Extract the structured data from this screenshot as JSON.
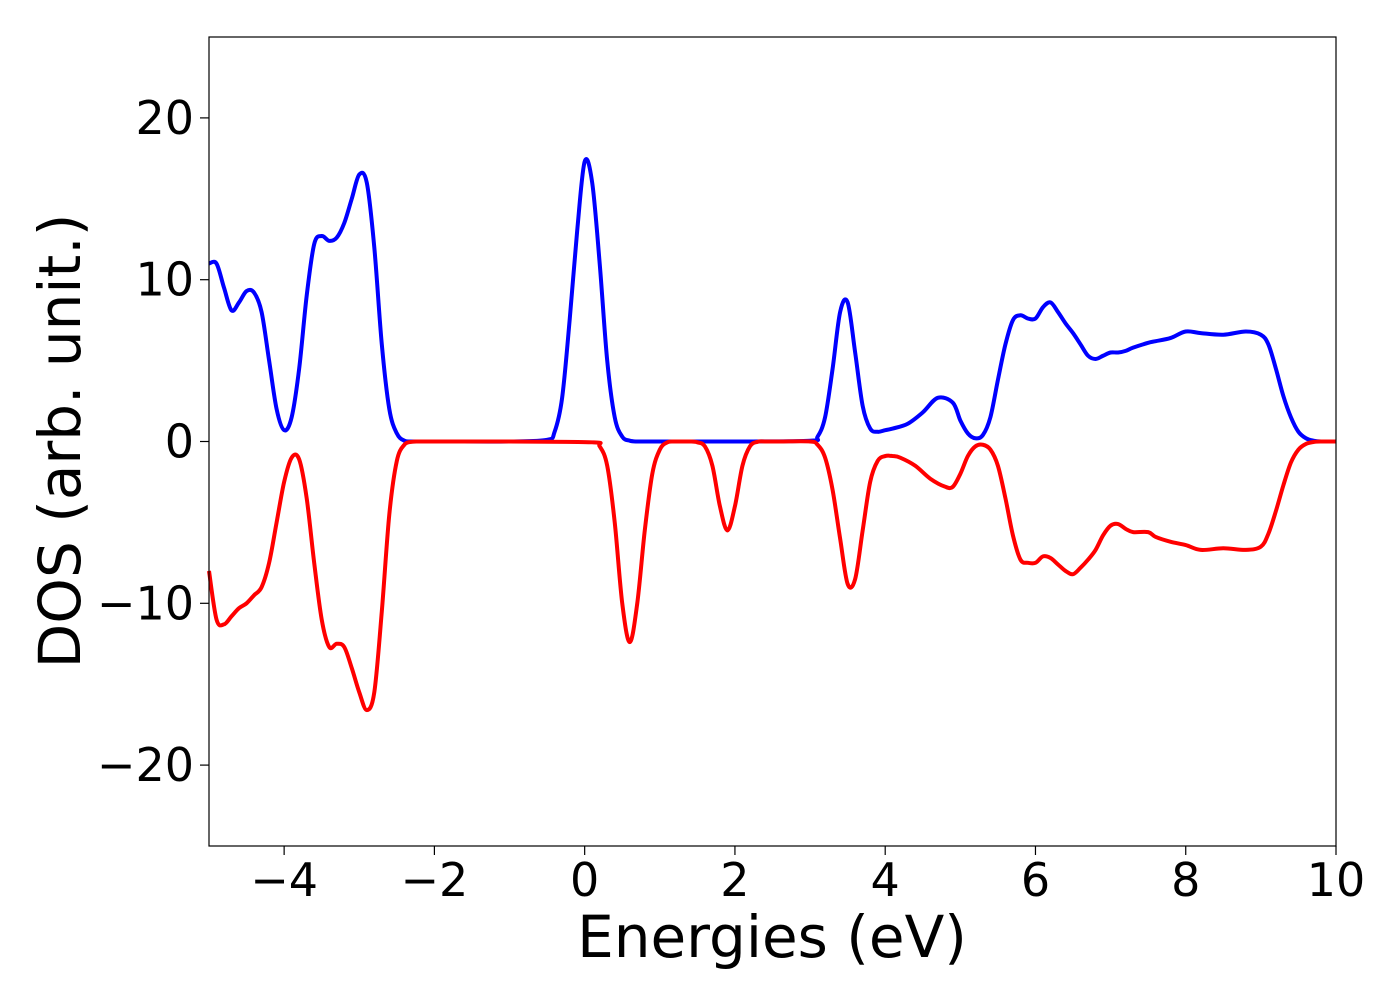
{
  "chart_data": {
    "type": "line",
    "title": "",
    "xlabel": "Energies (eV)",
    "ylabel": "DOS (arb. unit.)",
    "xlim": [
      -5,
      10
    ],
    "ylim": [
      -25,
      25
    ],
    "xticks": [
      -4,
      -2,
      0,
      2,
      4,
      6,
      8,
      10
    ],
    "xtick_labels": [
      "−4",
      "−2",
      "0",
      "2",
      "4",
      "6",
      "8",
      "10"
    ],
    "yticks": [
      -20,
      -10,
      0,
      10,
      20
    ],
    "ytick_labels": [
      "−20",
      "−10",
      "0",
      "10",
      "20"
    ],
    "grid": false,
    "legend": "none",
    "series": [
      {
        "color": "#0000ff",
        "x": [
          -5.0,
          -4.9,
          -4.8,
          -4.7,
          -4.6,
          -4.5,
          -4.4,
          -4.3,
          -4.2,
          -4.1,
          -4.0,
          -3.9,
          -3.8,
          -3.7,
          -3.6,
          -3.5,
          -3.4,
          -3.3,
          -3.2,
          -3.1,
          -3.0,
          -2.9,
          -2.8,
          -2.7,
          -2.6,
          -2.5,
          -2.4,
          -2.3,
          -2.2,
          -2.1,
          -2.0,
          -1.9,
          -1.8,
          -1.0,
          -0.5,
          -0.4,
          -0.3,
          -0.2,
          -0.1,
          0.0,
          0.1,
          0.2,
          0.3,
          0.4,
          0.5,
          0.6,
          0.7,
          0.8,
          1.0,
          2.0,
          3.0,
          3.1,
          3.2,
          3.3,
          3.4,
          3.5,
          3.6,
          3.7,
          3.8,
          3.9,
          4.0,
          4.1,
          4.3,
          4.5,
          4.7,
          4.9,
          5.0,
          5.1,
          5.2,
          5.3,
          5.4,
          5.5,
          5.6,
          5.7,
          5.8,
          5.9,
          6.0,
          6.1,
          6.2,
          6.3,
          6.4,
          6.5,
          6.6,
          6.7,
          6.8,
          6.9,
          7.0,
          7.1,
          7.2,
          7.3,
          7.5,
          7.6,
          7.8,
          8.0,
          8.2,
          8.5,
          8.8,
          9.0,
          9.1,
          9.2,
          9.3,
          9.4,
          9.5,
          9.6,
          9.7,
          9.8,
          10.0
        ],
        "y": [
          11.0,
          11.0,
          9.5,
          8.1,
          8.6,
          9.3,
          9.2,
          8.0,
          5.0,
          2.0,
          0.7,
          1.5,
          4.5,
          9.0,
          12.2,
          12.7,
          12.4,
          12.6,
          13.5,
          15.0,
          16.5,
          16.0,
          12.0,
          6.0,
          2.0,
          0.5,
          0.05,
          0.0,
          0.0,
          0.0,
          0.0,
          0.0,
          0.0,
          0.0,
          0.1,
          0.6,
          2.7,
          7.5,
          13.0,
          17.3,
          16.0,
          11.0,
          5.0,
          1.5,
          0.3,
          0.05,
          0.0,
          0.0,
          0.0,
          0.0,
          0.05,
          0.3,
          1.5,
          4.5,
          8.0,
          8.6,
          5.5,
          2.2,
          0.8,
          0.6,
          0.7,
          0.8,
          1.1,
          1.8,
          2.7,
          2.4,
          1.3,
          0.5,
          0.2,
          0.4,
          1.5,
          3.8,
          6.0,
          7.5,
          7.8,
          7.6,
          7.6,
          8.3,
          8.6,
          8.0,
          7.3,
          6.7,
          6.0,
          5.3,
          5.1,
          5.3,
          5.5,
          5.5,
          5.6,
          5.8,
          6.1,
          6.2,
          6.4,
          6.8,
          6.7,
          6.6,
          6.8,
          6.6,
          6.0,
          4.5,
          2.8,
          1.5,
          0.6,
          0.2,
          0.05,
          0.0,
          0.0
        ]
      },
      {
        "color": "#ff0000",
        "x": [
          -5.0,
          -4.9,
          -4.8,
          -4.7,
          -4.6,
          -4.5,
          -4.4,
          -4.3,
          -4.2,
          -4.1,
          -4.0,
          -3.9,
          -3.8,
          -3.7,
          -3.6,
          -3.5,
          -3.4,
          -3.3,
          -3.2,
          -3.1,
          -3.0,
          -2.9,
          -2.8,
          -2.7,
          -2.6,
          -2.5,
          -2.4,
          -2.3,
          -2.2,
          -2.1,
          -2.0,
          -1.9,
          -1.8,
          -1.0,
          0.1,
          0.2,
          0.3,
          0.4,
          0.5,
          0.6,
          0.7,
          0.8,
          0.9,
          1.0,
          1.1,
          1.2,
          1.3,
          1.4,
          1.5,
          1.6,
          1.7,
          1.8,
          1.9,
          2.0,
          2.1,
          2.2,
          2.3,
          2.4,
          2.6,
          3.0,
          3.1,
          3.2,
          3.3,
          3.4,
          3.5,
          3.6,
          3.7,
          3.8,
          3.9,
          4.0,
          4.1,
          4.2,
          4.4,
          4.6,
          4.8,
          4.9,
          5.0,
          5.1,
          5.2,
          5.3,
          5.4,
          5.5,
          5.6,
          5.7,
          5.8,
          5.9,
          6.0,
          6.1,
          6.2,
          6.3,
          6.4,
          6.5,
          6.6,
          6.7,
          6.8,
          6.9,
          7.0,
          7.1,
          7.2,
          7.3,
          7.5,
          7.6,
          7.8,
          8.0,
          8.2,
          8.5,
          8.8,
          9.0,
          9.1,
          9.2,
          9.3,
          9.4,
          9.5,
          9.6,
          9.7,
          9.8,
          10.0
        ],
        "y": [
          -8.0,
          -11.0,
          -11.3,
          -10.8,
          -10.3,
          -10.0,
          -9.5,
          -9.0,
          -7.5,
          -5.0,
          -2.5,
          -1.0,
          -1.1,
          -3.5,
          -7.5,
          -11.0,
          -12.7,
          -12.5,
          -12.7,
          -14.0,
          -15.5,
          -16.6,
          -15.5,
          -10.5,
          -4.5,
          -1.2,
          -0.2,
          -0.02,
          0.0,
          0.0,
          0.0,
          0.0,
          0.0,
          0.0,
          -0.05,
          -0.3,
          -1.5,
          -5.0,
          -10.0,
          -12.4,
          -10.0,
          -5.5,
          -2.0,
          -0.5,
          -0.05,
          0.0,
          0.0,
          0.0,
          -0.05,
          -0.3,
          -1.5,
          -4.0,
          -5.5,
          -4.0,
          -1.5,
          -0.3,
          -0.02,
          0.0,
          0.0,
          0.0,
          -0.2,
          -1.0,
          -3.0,
          -6.0,
          -8.8,
          -8.5,
          -5.5,
          -2.5,
          -1.2,
          -0.9,
          -0.9,
          -1.0,
          -1.5,
          -2.3,
          -2.8,
          -2.8,
          -2.0,
          -0.9,
          -0.3,
          -0.2,
          -0.5,
          -1.5,
          -3.5,
          -5.8,
          -7.3,
          -7.5,
          -7.5,
          -7.1,
          -7.2,
          -7.6,
          -8.0,
          -8.2,
          -7.8,
          -7.3,
          -6.7,
          -5.8,
          -5.2,
          -5.1,
          -5.4,
          -5.6,
          -5.6,
          -5.9,
          -6.2,
          -6.4,
          -6.7,
          -6.6,
          -6.7,
          -6.5,
          -5.7,
          -4.3,
          -2.7,
          -1.3,
          -0.5,
          -0.15,
          -0.03,
          0.0,
          0.0
        ]
      }
    ]
  }
}
